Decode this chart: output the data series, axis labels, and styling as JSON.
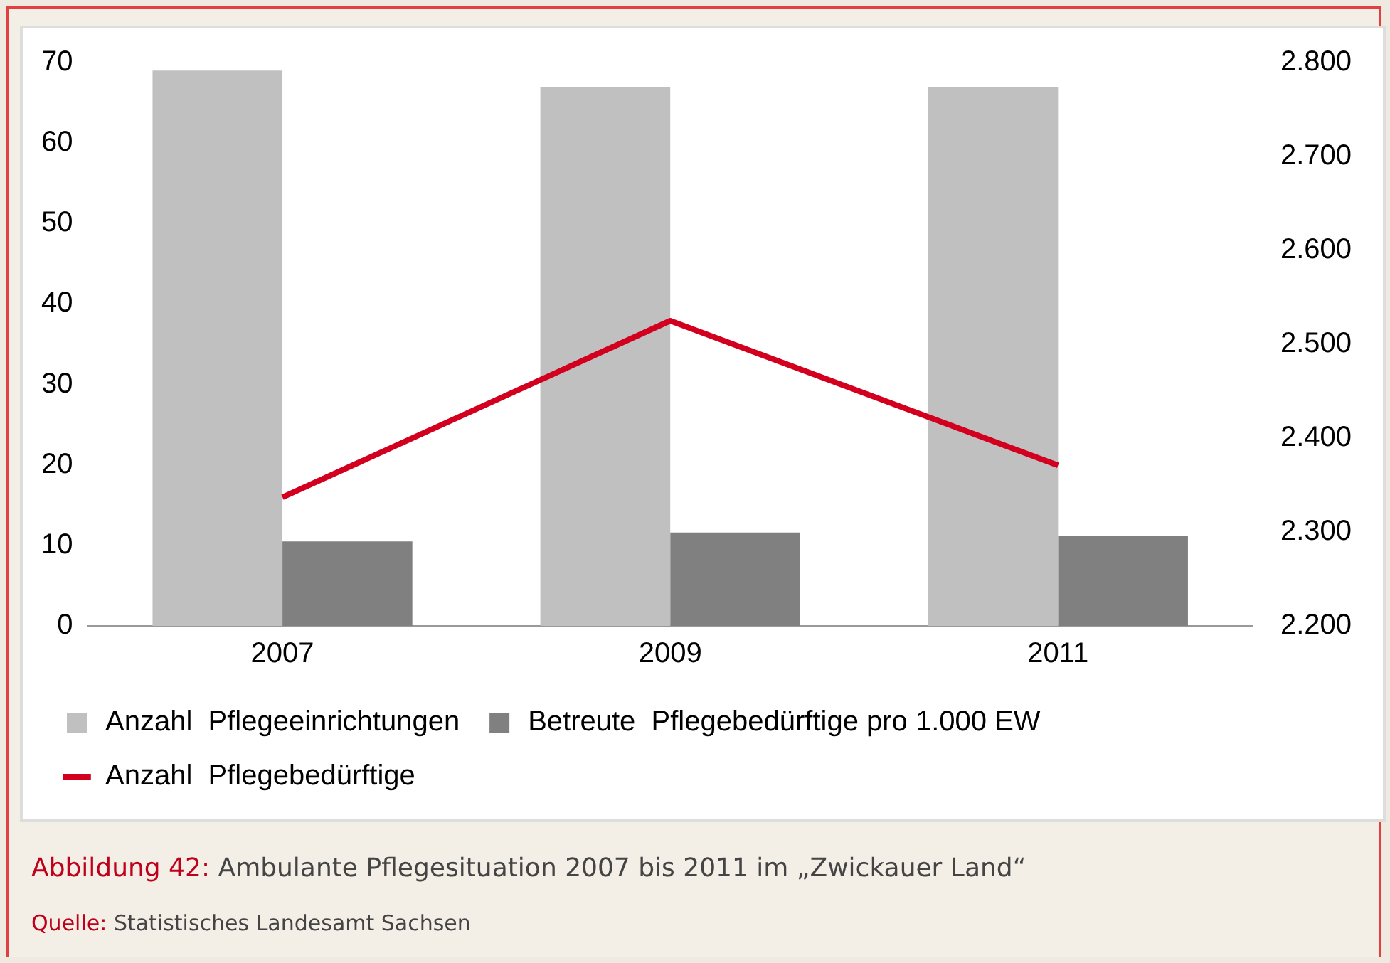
{
  "chart_data": {
    "type": "bar",
    "categories": [
      "2007",
      "2009",
      "2011"
    ],
    "series": [
      {
        "name": "Anzahl  Pflegeeinrichtungen",
        "color": "#c0c0c0",
        "values": [
          69,
          67,
          67
        ]
      },
      {
        "name": "Betreute  Pflegebedürftige pro 1.000 EW",
        "color": "#808080",
        "values": [
          10.5,
          11.6,
          11.2
        ]
      },
      {
        "name": "Anzahl  Pflegebedürftige",
        "type": "line",
        "axis": "y2",
        "color": "#d2001e",
        "values": [
          2337,
          2525,
          2371
        ],
        "marker": "none"
      }
    ],
    "ylim": [
      0,
      70
    ],
    "yticks": [
      0,
      10,
      20,
      30,
      40,
      50,
      60,
      70
    ],
    "y2lim": [
      2200,
      2800
    ],
    "y2ticks": [
      {
        "value": 2200,
        "label": "2.200"
      },
      {
        "value": 2300,
        "label": "2.300"
      },
      {
        "value": 2400,
        "label": "2.400"
      },
      {
        "value": 2500,
        "label": "2.500"
      },
      {
        "value": 2600,
        "label": "2.600"
      },
      {
        "value": 2700,
        "label": "2.700"
      },
      {
        "value": 2800,
        "label": "2.800"
      }
    ],
    "grid": false,
    "legend": "bottom",
    "annotations": [
      "Abbildung 42:  Ambulante Pflegesituation 2007 bis 2011 im „Zwickauer Land“",
      "Quelle: Statistisches Landesamt Sachsen"
    ]
  }
}
